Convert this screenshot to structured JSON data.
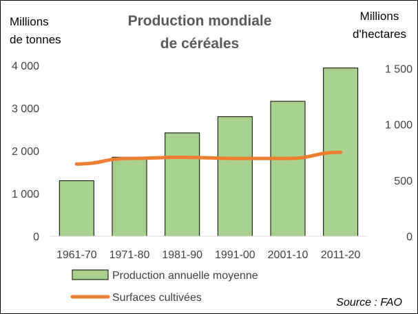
{
  "chart_data": {
    "type": "bar",
    "title_lines": [
      "Production mondiale",
      "de céréales"
    ],
    "left_axis_title_lines": [
      "Millions",
      "de tonnes"
    ],
    "right_axis_title_lines": [
      "Millions",
      "d'hectares"
    ],
    "categories": [
      "1961-70",
      "1971-80",
      "1981-90",
      "1991-00",
      "2001-10",
      "2011-20"
    ],
    "series": [
      {
        "name": "Production annuelle moyenne",
        "type": "bar",
        "axis": "left",
        "color": "#a9d18e",
        "values": [
          1300,
          1850,
          2420,
          2800,
          3160,
          3940
        ]
      },
      {
        "name": "Surfaces cultivées",
        "type": "line",
        "axis": "right",
        "color": "#ed7d31",
        "values": [
          645,
          695,
          705,
          695,
          695,
          750
        ]
      }
    ],
    "left_axis": {
      "ylim": [
        0,
        4000
      ],
      "ticks": [
        0,
        1000,
        2000,
        3000,
        4000
      ],
      "tick_labels": [
        "0",
        "1 000",
        "2 000",
        "3 000",
        "4 000"
      ]
    },
    "right_axis": {
      "ylim": [
        0,
        1600
      ],
      "ticks": [
        0,
        500,
        1000,
        1500
      ],
      "tick_labels": [
        "0",
        "500",
        "1 000",
        "1 500"
      ]
    },
    "grid": false,
    "legend_position": "bottom",
    "source": "Source : FAO"
  }
}
